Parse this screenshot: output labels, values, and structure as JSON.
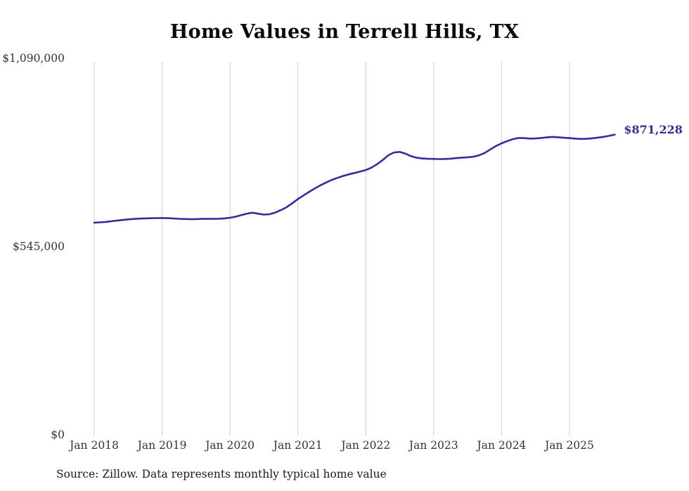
{
  "source_note": "Source: Zillow. Data represents monthly typical home value",
  "colors": {
    "line": "#312da0",
    "end_label": "#312da0",
    "grid": "#cccccc",
    "tick_text": "#333333",
    "title_text": "#0a0a0a"
  },
  "chart_data": {
    "type": "line",
    "title": "Home Values in Terrell Hills, TX",
    "xlabel": "",
    "ylabel": "",
    "ylim": [
      0,
      1090000
    ],
    "grid": "vertical-only",
    "legend": "none",
    "y_ticks": [
      {
        "value": 0,
        "label": "$0"
      },
      {
        "value": 545000,
        "label": "$545,000"
      },
      {
        "value": 1090000,
        "label": "$1,090,000"
      }
    ],
    "x_ticks": [
      "Jan 2018",
      "Jan 2019",
      "Jan 2020",
      "Jan 2021",
      "Jan 2022",
      "Jan 2023",
      "Jan 2024",
      "Jan 2025"
    ],
    "start_month": "2018-01",
    "frequency": "monthly",
    "series": [
      {
        "name": "Typical home value",
        "last_value": 871228,
        "last_value_label": "$871,228",
        "monthly_values": [
          616000,
          617200,
          618500,
          620200,
          622000,
          624000,
          625800,
          627000,
          628000,
          628600,
          628900,
          629300,
          629600,
          629100,
          628300,
          627400,
          626700,
          626300,
          626600,
          627100,
          627400,
          627100,
          627500,
          628600,
          630500,
          633500,
          638000,
          642500,
          645000,
          642000,
          639500,
          640500,
          645500,
          652500,
          661000,
          672500,
          684500,
          695000,
          705500,
          715500,
          724500,
          732500,
          740000,
          746000,
          751500,
          756000,
          760000,
          764000,
          768500,
          775500,
          785500,
          797500,
          811500,
          819500,
          821000,
          816000,
          808500,
          804000,
          802000,
          801000,
          800800,
          800200,
          800600,
          801500,
          803000,
          804500,
          805600,
          807200,
          811000,
          818000,
          828000,
          838000,
          846000,
          852500,
          858000,
          861500,
          861000,
          859500,
          860000,
          861500,
          863000,
          864500,
          863500,
          862000,
          861000,
          859500,
          858500,
          859000,
          860500,
          862500,
          864500,
          867500,
          871228
        ]
      }
    ]
  }
}
